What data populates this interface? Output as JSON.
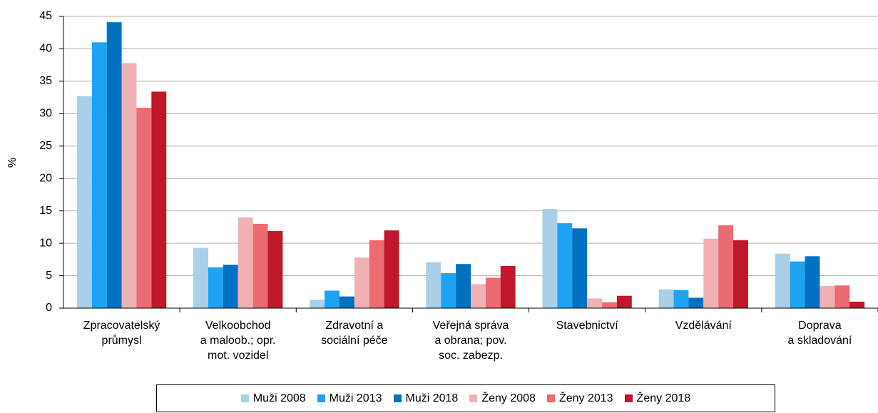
{
  "chart_data": {
    "type": "bar",
    "ylabel": "%",
    "categories": [
      "Zpracovatelský\nprůmysl",
      "Velkoobchod\na maloob.; opr.\nmot. vozidel",
      "Zdravotní a\nsociální péče",
      "Veřejná správa\na obrana; pov.\nsoc. zabezp.",
      "Stavebnictví",
      "Vzdělávání",
      "Doprava\na skladování"
    ],
    "series": [
      {
        "name": "Muži 2008",
        "color": "#a9cfe9",
        "values": [
          32.7,
          9.3,
          1.3,
          7.1,
          15.3,
          2.9,
          8.4
        ]
      },
      {
        "name": "Muži 2013",
        "color": "#1fa2f2",
        "values": [
          41.0,
          6.3,
          2.7,
          5.4,
          13.1,
          2.8,
          7.2
        ]
      },
      {
        "name": "Muži 2018",
        "color": "#0070c0",
        "values": [
          44.1,
          6.7,
          1.8,
          6.8,
          12.3,
          1.6,
          8.0
        ]
      },
      {
        "name": "Ženy 2008",
        "color": "#f0b1b5",
        "values": [
          37.8,
          14.0,
          7.8,
          3.7,
          1.5,
          10.7,
          3.4
        ]
      },
      {
        "name": "Ženy 2013",
        "color": "#eb6b73",
        "values": [
          30.9,
          13.0,
          10.5,
          4.7,
          0.9,
          12.8,
          3.5
        ]
      },
      {
        "name": "Ženy 2018",
        "color": "#c0172a",
        "values": [
          33.4,
          11.9,
          12.0,
          6.5,
          1.9,
          10.5,
          1.0
        ]
      }
    ],
    "ylim": [
      0,
      45
    ],
    "yticks": [
      0,
      5,
      10,
      15,
      20,
      25,
      30,
      35,
      40,
      45
    ],
    "grid": true
  }
}
